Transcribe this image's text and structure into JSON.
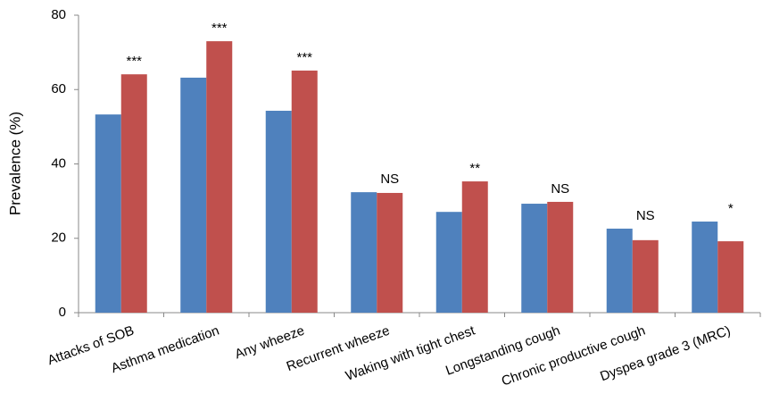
{
  "chart_data": {
    "type": "bar",
    "y_label": "Prevalence (%)",
    "categories": [
      "Attacks of SOB",
      "Asthma medication",
      "Any wheeze",
      "Recurrent wheeze",
      "Waking with tight chest",
      "Longstanding cough",
      "Chronic productive cough",
      "Dyspea grade 3 (MRC)"
    ],
    "series": [
      {
        "color": "#4f81bd",
        "values": [
          53.3,
          63.2,
          54.3,
          32.4,
          27.1,
          29.3,
          22.6,
          24.5
        ]
      },
      {
        "color": "#c0504d",
        "values": [
          64.1,
          73.0,
          65.1,
          32.2,
          35.3,
          29.8,
          19.5,
          19.2
        ]
      }
    ],
    "annotations": [
      "***",
      "***",
      "***",
      "NS",
      "**",
      "NS",
      "NS",
      "*"
    ],
    "ylim": [
      0,
      80
    ],
    "yticks": [
      0,
      20,
      40,
      60,
      80
    ],
    "grid": false
  }
}
